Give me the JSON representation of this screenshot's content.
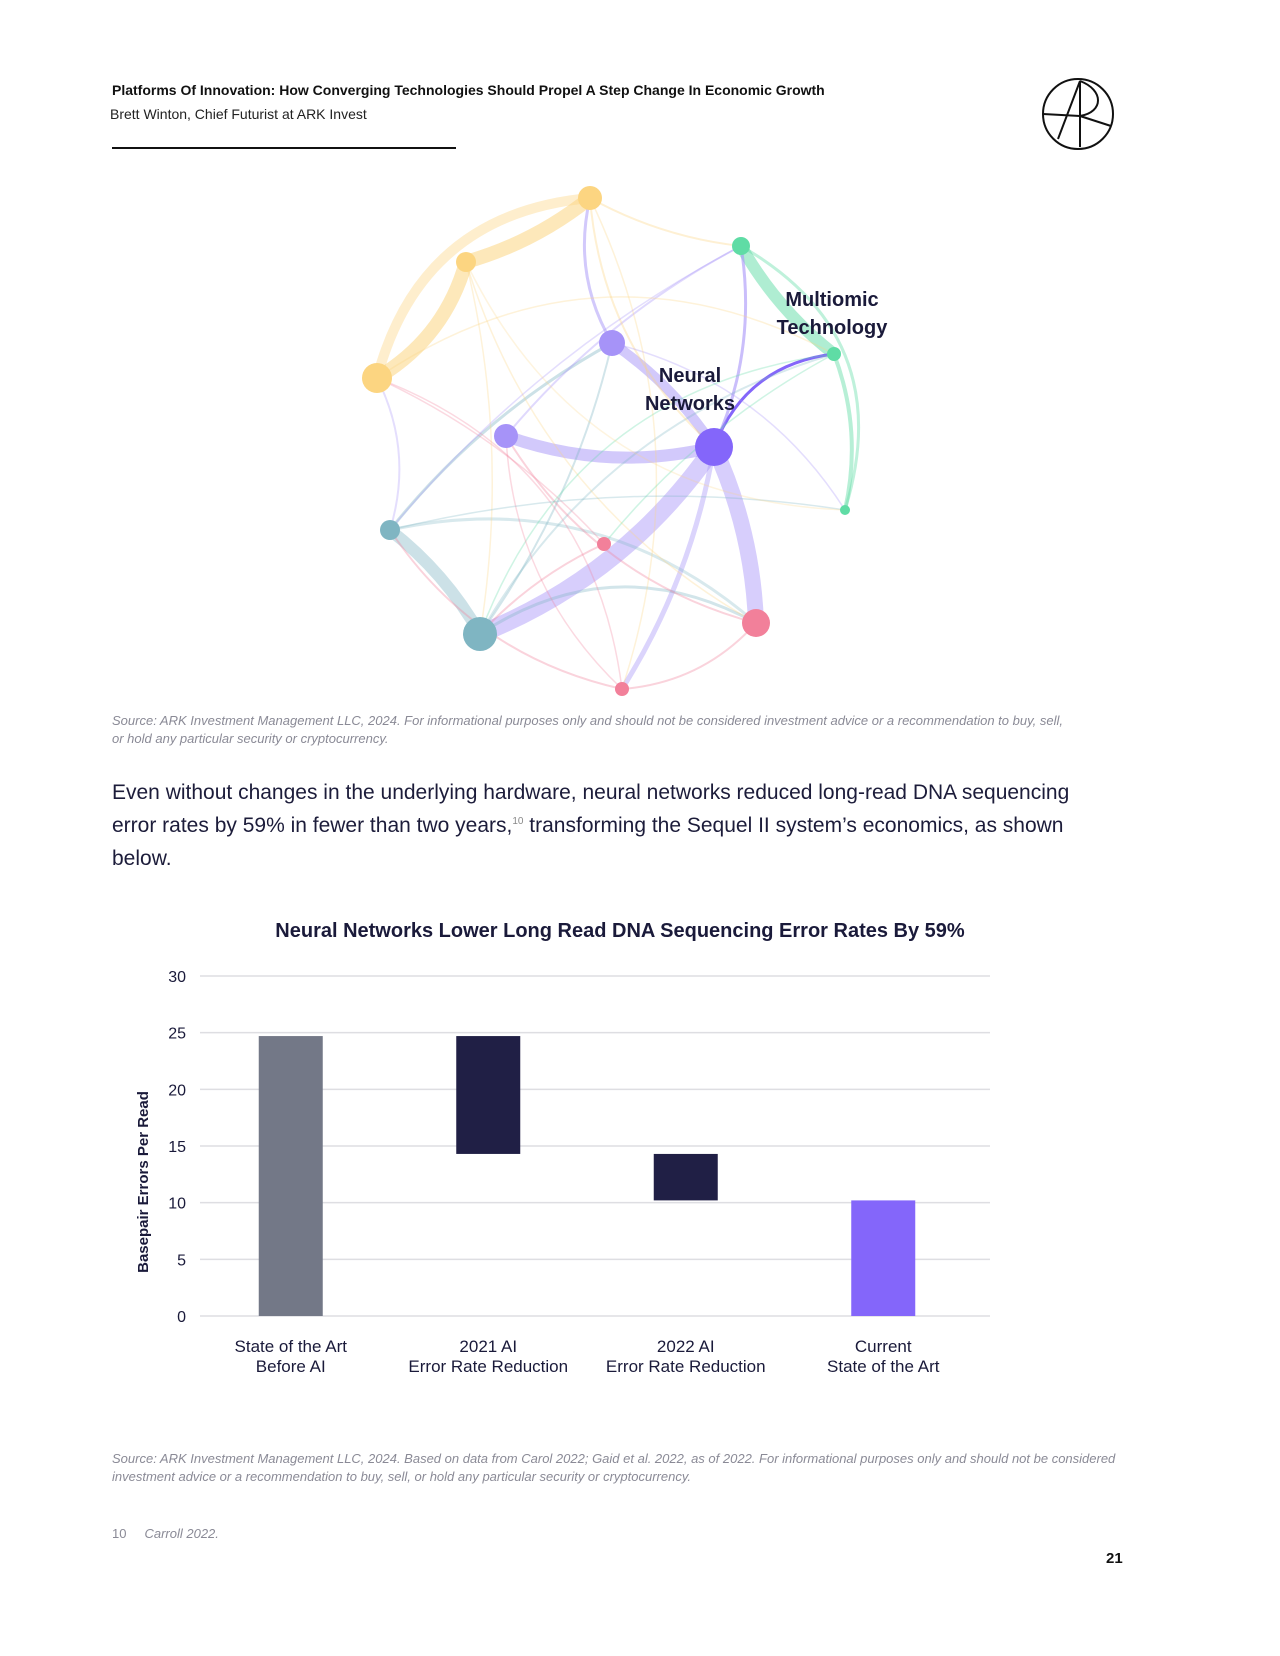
{
  "header": {
    "title": "Platforms Of Innovation: How Converging Technologies Should Propel A Step Change In Economic Growth",
    "author": "Brett Winton, Chief Futurist at ARK Invest",
    "logo_icon": "ark-logo-icon"
  },
  "network": {
    "labels": {
      "neural": "Neural\nNetworks",
      "multiomic": "Multiomic\nTechnology"
    },
    "colors": {
      "yellow": "#fcd581",
      "purple": "#8466fa",
      "lavender": "#a693f8",
      "green": "#5fdca5",
      "teal": "#7fb5c2",
      "pink": "#f2809a"
    }
  },
  "network_source": "Source: ARK Investment Management LLC, 2024. For informational purposes only and should not be considered investment advice or a recommendation to buy, sell, or hold any particular security or cryptocurrency.",
  "body": {
    "text_before": "Even without changes in the underlying hardware, neural networks reduced long-read DNA sequencing error rates by 59% in fewer than two years,",
    "footnote_ref": "10",
    "text_after": " transforming the Sequel II system’s economics, as shown below."
  },
  "chart_data": {
    "type": "bar",
    "subtype": "waterfall",
    "title": "Neural Networks Lower Long Read DNA Sequencing Error Rates By 59%",
    "ylabel": "Basepair Errors Per Read",
    "xlabel": "",
    "ylim": [
      0,
      30
    ],
    "yticks": [
      "0",
      "5",
      "10",
      "15",
      "20",
      "25",
      "30"
    ],
    "grid": true,
    "categories": [
      "State of the Art\nBefore AI",
      "2021 AI\nError Rate Reduction",
      "2022 AI\nError Rate Reduction",
      "Current\nState of the Art"
    ],
    "bars": [
      {
        "bottom": 0,
        "top": 24.7,
        "color": "#737887"
      },
      {
        "bottom": 14.3,
        "top": 24.7,
        "color": "#201f45"
      },
      {
        "bottom": 10.2,
        "top": 14.3,
        "color": "#201f45"
      },
      {
        "bottom": 0,
        "top": 10.2,
        "color": "#8466fa"
      }
    ]
  },
  "chart_source": "Source: ARK Investment Management LLC, 2024. Based on data from Carol 2022;  Gaid et al. 2022, as of 2022. For informational purposes only and should not be considered investment advice or a recommendation to buy, sell, or hold any particular security or cryptocurrency.",
  "footnote": {
    "number": "10",
    "text": "Carroll 2022."
  },
  "page_number": "21"
}
